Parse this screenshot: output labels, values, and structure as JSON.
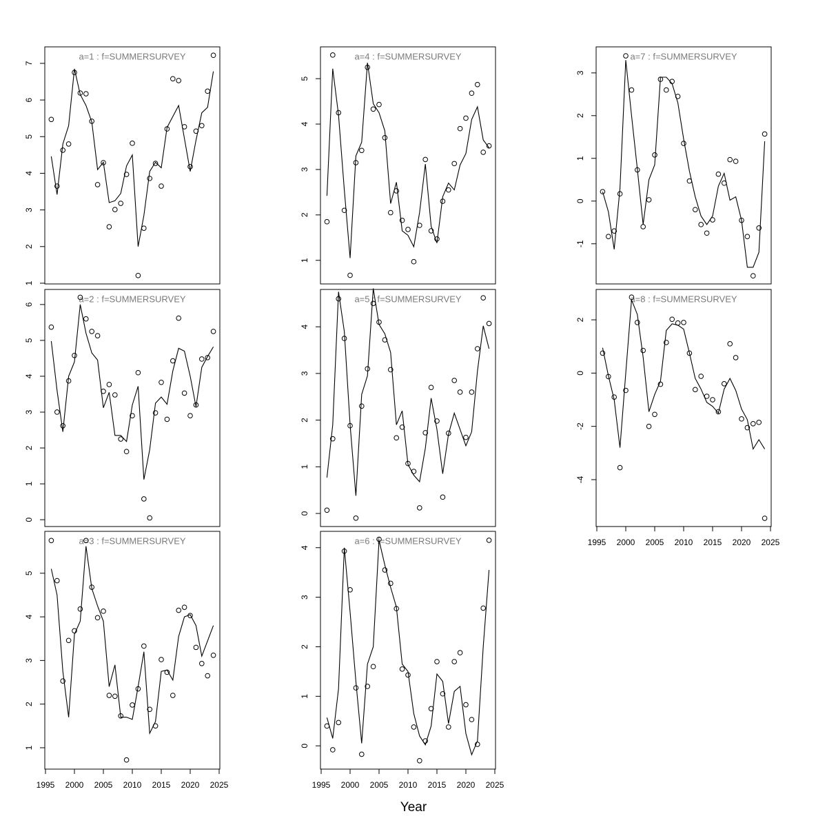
{
  "chart_data": [
    {
      "type": "line",
      "title": "a=1  :  f=SUMMERSURVEY",
      "color": "#000000",
      "x": [
        1996,
        1997,
        1998,
        1999,
        2000,
        2001,
        2002,
        2003,
        2004,
        2005,
        2006,
        2007,
        2008,
        2009,
        2010,
        2011,
        2012,
        2013,
        2014,
        2015,
        2016,
        2017,
        2018,
        2019,
        2020,
        2021,
        2022,
        2023,
        2024
      ],
      "series": [
        {
          "style": "points",
          "values": [
            5.47,
            3.65,
            4.63,
            4.8,
            6.75,
            6.19,
            6.17,
            5.42,
            3.69,
            4.29,
            2.54,
            3.01,
            3.18,
            3.97,
            4.82,
            1.21,
            2.5,
            3.86,
            4.27,
            3.65,
            5.21,
            6.58,
            6.53,
            5.27,
            4.18,
            5.15,
            5.3,
            6.24,
            7.22
          ]
        },
        {
          "style": "line",
          "values": [
            4.46,
            3.42,
            4.8,
            5.3,
            6.85,
            6.15,
            5.85,
            5.4,
            4.1,
            4.3,
            3.2,
            3.25,
            3.45,
            4.2,
            4.5,
            2.0,
            2.85,
            4.05,
            4.3,
            4.15,
            5.25,
            5.55,
            5.85,
            4.95,
            4.05,
            4.9,
            5.65,
            5.8,
            6.78
          ]
        }
      ],
      "xlim": [
        1994.88,
        2025.12
      ],
      "ylim": [
        0.98,
        7.45
      ],
      "yticks": [
        1,
        2,
        3,
        4,
        5,
        6,
        7
      ]
    },
    {
      "type": "line",
      "title": "a=2  :  f=SUMMERSURVEY",
      "color": "#000000",
      "x": [
        1996,
        1997,
        1998,
        1999,
        2000,
        2001,
        2002,
        2003,
        2004,
        2005,
        2006,
        2007,
        2008,
        2009,
        2010,
        2011,
        2012,
        2013,
        2014,
        2015,
        2016,
        2017,
        2018,
        2019,
        2020,
        2021,
        2022,
        2023,
        2024
      ],
      "series": [
        {
          "style": "points",
          "values": [
            5.37,
            3.0,
            2.62,
            3.87,
            4.58,
            6.2,
            5.6,
            5.25,
            5.13,
            3.58,
            3.77,
            3.48,
            2.25,
            1.9,
            2.9,
            4.1,
            0.58,
            0.05,
            2.98,
            3.83,
            2.8,
            4.43,
            5.62,
            3.53,
            2.9,
            3.2,
            4.48,
            4.52,
            5.25
          ]
        },
        {
          "style": "line",
          "values": [
            4.98,
            3.6,
            2.45,
            4.0,
            4.4,
            6.0,
            5.2,
            4.65,
            4.45,
            3.12,
            3.55,
            2.35,
            2.35,
            2.18,
            3.2,
            3.72,
            1.12,
            1.95,
            3.25,
            3.42,
            3.22,
            4.15,
            4.78,
            4.7,
            4.0,
            3.15,
            4.25,
            4.55,
            4.82
          ]
        }
      ],
      "xlim": [
        1994.88,
        2025.12
      ],
      "ylim": [
        -0.19,
        6.42
      ],
      "yticks": [
        0,
        1,
        2,
        3,
        4,
        5,
        6
      ]
    },
    {
      "type": "line",
      "title": "a=3  :  f=SUMMERSURVEY",
      "color": "#000000",
      "x": [
        1996,
        1997,
        1998,
        1999,
        2000,
        2001,
        2002,
        2003,
        2004,
        2005,
        2006,
        2007,
        2008,
        2009,
        2010,
        2011,
        2012,
        2013,
        2014,
        2015,
        2016,
        2017,
        2018,
        2019,
        2020,
        2021,
        2022,
        2023,
        2024
      ],
      "series": [
        {
          "style": "points",
          "values": [
            5.75,
            4.83,
            2.53,
            3.46,
            3.68,
            4.18,
            5.75,
            4.68,
            3.98,
            4.13,
            2.2,
            2.18,
            1.73,
            0.72,
            1.98,
            2.35,
            3.33,
            1.88,
            1.5,
            3.02,
            2.73,
            2.2,
            4.15,
            4.22,
            4.03,
            3.3,
            2.93,
            2.65,
            3.12
          ]
        },
        {
          "style": "line",
          "values": [
            5.1,
            4.5,
            2.75,
            1.7,
            3.6,
            3.9,
            5.62,
            4.65,
            4.25,
            3.9,
            2.4,
            2.9,
            1.7,
            1.7,
            1.65,
            2.4,
            3.2,
            1.33,
            1.6,
            2.75,
            2.78,
            2.55,
            3.55,
            4.0,
            4.05,
            3.8,
            3.1,
            3.45,
            3.8
          ]
        }
      ],
      "xlim": [
        1994.88,
        2025.12
      ],
      "ylim": [
        0.51,
        5.96
      ],
      "yticks": [
        1,
        2,
        3,
        4,
        5
      ],
      "xticks": [
        1995,
        2000,
        2005,
        2010,
        2015,
        2020,
        2025
      ]
    },
    {
      "type": "line",
      "title": "a=4  :  f=SUMMERSURVEY",
      "color": "#000000",
      "x": [
        1996,
        1997,
        1998,
        1999,
        2000,
        2001,
        2002,
        2003,
        2004,
        2005,
        2006,
        2007,
        2008,
        2009,
        2010,
        2011,
        2012,
        2013,
        2014,
        2015,
        2016,
        2017,
        2018,
        2019,
        2020,
        2021,
        2022,
        2023,
        2024
      ],
      "series": [
        {
          "style": "points",
          "values": [
            1.85,
            5.52,
            4.25,
            2.1,
            0.67,
            3.15,
            3.42,
            5.25,
            4.33,
            4.43,
            3.7,
            2.05,
            2.53,
            1.88,
            1.68,
            0.97,
            1.77,
            3.22,
            1.65,
            1.47,
            2.3,
            2.55,
            3.13,
            3.9,
            4.13,
            4.68,
            4.87,
            3.38,
            3.52
          ]
        },
        {
          "style": "line",
          "values": [
            2.42,
            5.22,
            4.2,
            2.55,
            1.05,
            3.3,
            3.6,
            5.35,
            4.45,
            4.25,
            3.85,
            2.25,
            2.72,
            1.65,
            1.55,
            1.3,
            2.05,
            3.12,
            1.75,
            1.38,
            2.4,
            2.7,
            2.55,
            3.1,
            3.35,
            4.1,
            4.38,
            3.65,
            3.48
          ]
        }
      ],
      "xlim": [
        1994.88,
        2025.12
      ],
      "ylim": [
        0.48,
        5.7
      ],
      "yticks": [
        1,
        2,
        3,
        4,
        5
      ]
    },
    {
      "type": "line",
      "title": "a=5  :  f=SUMMERSURVEY",
      "color": "#000000",
      "x": [
        1996,
        1997,
        1998,
        1999,
        2000,
        2001,
        2002,
        2003,
        2004,
        2005,
        2006,
        2007,
        2008,
        2009,
        2010,
        2011,
        2012,
        2013,
        2014,
        2015,
        2016,
        2017,
        2018,
        2019,
        2020,
        2021,
        2022,
        2023,
        2024
      ],
      "series": [
        {
          "style": "points",
          "values": [
            0.07,
            1.6,
            4.6,
            3.75,
            1.88,
            -0.1,
            2.3,
            3.1,
            4.5,
            4.1,
            3.72,
            3.08,
            1.62,
            1.85,
            1.07,
            0.9,
            0.12,
            1.73,
            2.7,
            1.98,
            0.35,
            1.72,
            2.85,
            2.6,
            1.63,
            2.6,
            3.53,
            4.62,
            4.07
          ]
        },
        {
          "style": "line",
          "values": [
            0.77,
            1.9,
            4.75,
            3.9,
            1.9,
            0.38,
            2.55,
            2.95,
            4.82,
            4.05,
            3.85,
            3.45,
            1.9,
            2.2,
            1.05,
            0.82,
            0.68,
            1.4,
            2.47,
            1.8,
            0.85,
            1.7,
            2.15,
            1.8,
            1.45,
            1.75,
            3.05,
            4.02,
            3.53
          ]
        }
      ],
      "xlim": [
        1994.88,
        2025.12
      ],
      "ylim": [
        -0.28,
        4.8
      ],
      "yticks": [
        0,
        1,
        2,
        3,
        4
      ]
    },
    {
      "type": "line",
      "title": "a=6  :  f=SUMMERSURVEY",
      "color": "#000000",
      "xlabel": "Year",
      "x": [
        1996,
        1997,
        1998,
        1999,
        2000,
        2001,
        2002,
        2003,
        2004,
        2005,
        2006,
        2007,
        2008,
        2009,
        2010,
        2011,
        2012,
        2013,
        2014,
        2015,
        2016,
        2017,
        2018,
        2019,
        2020,
        2021,
        2022,
        2023,
        2024
      ],
      "series": [
        {
          "style": "points",
          "values": [
            0.4,
            -0.08,
            0.47,
            3.93,
            3.15,
            1.17,
            -0.17,
            1.2,
            1.6,
            4.17,
            3.55,
            3.28,
            2.77,
            1.55,
            1.43,
            0.38,
            -0.3,
            0.1,
            0.75,
            1.7,
            1.05,
            0.38,
            1.7,
            1.88,
            0.83,
            0.53,
            0.03,
            2.78,
            4.15
          ]
        },
        {
          "style": "line",
          "values": [
            0.57,
            0.15,
            1.15,
            4.0,
            2.7,
            1.3,
            0.05,
            1.65,
            2.0,
            4.15,
            3.65,
            3.2,
            2.8,
            1.65,
            1.5,
            0.65,
            0.2,
            0.02,
            0.4,
            1.45,
            1.3,
            0.45,
            1.1,
            1.2,
            0.25,
            -0.18,
            0.1,
            2.0,
            3.55
          ]
        }
      ],
      "xlim": [
        1994.88,
        2025.12
      ],
      "ylim": [
        -0.47,
        4.33
      ],
      "yticks": [
        0,
        1,
        2,
        3,
        4
      ],
      "xticks": [
        1995,
        2000,
        2005,
        2010,
        2015,
        2020,
        2025
      ]
    },
    {
      "type": "line",
      "title": "a=7  :  f=SUMMERSURVEY",
      "color": "#000000",
      "x": [
        1996,
        1997,
        1998,
        1999,
        2000,
        2001,
        2002,
        2003,
        2004,
        2005,
        2006,
        2007,
        2008,
        2009,
        2010,
        2011,
        2012,
        2013,
        2014,
        2015,
        2016,
        2017,
        2018,
        2019,
        2020,
        2021,
        2022,
        2023,
        2024
      ],
      "series": [
        {
          "style": "points",
          "values": [
            0.22,
            -0.83,
            -0.7,
            0.17,
            3.4,
            2.6,
            0.73,
            -0.6,
            0.03,
            1.08,
            2.85,
            2.6,
            2.8,
            2.45,
            1.35,
            0.47,
            -0.2,
            -0.55,
            -0.75,
            -0.44,
            0.63,
            0.42,
            0.97,
            0.93,
            -0.45,
            -0.83,
            -1.75,
            -0.63,
            1.57
          ]
        },
        {
          "style": "line",
          "values": [
            0.22,
            -0.25,
            -1.13,
            0.3,
            3.3,
            2.0,
            0.75,
            -0.55,
            0.5,
            0.85,
            2.9,
            2.9,
            2.75,
            2.3,
            1.45,
            0.7,
            0.1,
            -0.35,
            -0.55,
            -0.35,
            0.35,
            0.65,
            0.02,
            0.1,
            -0.45,
            -1.55,
            -1.55,
            -1.2,
            1.4
          ]
        }
      ],
      "xlim": [
        1994.88,
        2025.12
      ],
      "ylim": [
        -1.94,
        3.61
      ],
      "yticks": [
        -1,
        0,
        1,
        2,
        3
      ]
    },
    {
      "type": "line",
      "title": "a=8  :  f=SUMMERSURVEY",
      "color": "#000000",
      "x": [
        1996,
        1997,
        1998,
        1999,
        2000,
        2001,
        2002,
        2003,
        2004,
        2005,
        2006,
        2007,
        2008,
        2009,
        2010,
        2011,
        2012,
        2013,
        2014,
        2015,
        2016,
        2017,
        2018,
        2019,
        2020,
        2021,
        2022,
        2023,
        2024
      ],
      "series": [
        {
          "style": "points",
          "values": [
            0.75,
            -0.13,
            -0.9,
            -3.55,
            -0.65,
            2.85,
            1.9,
            0.85,
            -2.0,
            -1.55,
            -0.42,
            1.15,
            2.02,
            1.88,
            1.9,
            0.75,
            -0.62,
            -0.12,
            -0.87,
            -1.0,
            -1.45,
            -0.4,
            1.1,
            0.58,
            -1.72,
            -2.05,
            -1.9,
            -1.85,
            -5.45
          ]
        },
        {
          "style": "line",
          "values": [
            0.95,
            -0.1,
            -1.0,
            -2.8,
            0.0,
            2.75,
            2.2,
            0.6,
            -1.45,
            -0.8,
            -0.3,
            1.6,
            1.85,
            1.8,
            1.65,
            0.75,
            -0.2,
            -0.6,
            -1.1,
            -1.25,
            -1.5,
            -0.6,
            -0.2,
            -0.65,
            -1.35,
            -1.75,
            -2.85,
            -2.5,
            -2.85
          ]
        }
      ],
      "xlim": [
        1994.88,
        2025.12
      ],
      "ylim": [
        -5.76,
        3.14
      ],
      "yticks": [
        -4,
        -2,
        0,
        2
      ],
      "xticks": [
        1995,
        2000,
        2005,
        2010,
        2015,
        2020,
        2025
      ]
    }
  ]
}
